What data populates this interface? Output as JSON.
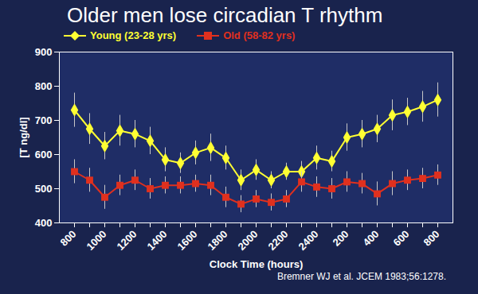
{
  "chart_data": {
    "type": "line",
    "title": "Older men lose circadian T rhythm",
    "x_label": "Clock Time (hours)",
    "y_label": "[T ng/dl]",
    "caption": "Bremner WJ et al. JCEM 1983;56:1278.",
    "categories": [
      "800",
      null,
      "1000",
      null,
      "1200",
      null,
      "1400",
      null,
      "1600",
      null,
      "1800",
      null,
      "2000",
      null,
      "2200",
      null,
      "2400",
      null,
      "200",
      null,
      "400",
      null,
      "600",
      null,
      "800"
    ],
    "series": [
      {
        "name": "Young (23-28 yrs)",
        "color": "#ffff33",
        "marker": "diamond",
        "values": [
          730,
          675,
          625,
          670,
          660,
          640,
          585,
          575,
          605,
          620,
          590,
          525,
          555,
          525,
          550,
          550,
          590,
          580,
          650,
          660,
          675,
          715,
          725,
          740,
          760
        ],
        "errors": [
          50,
          45,
          40,
          45,
          40,
          40,
          35,
          30,
          35,
          40,
          35,
          30,
          30,
          25,
          25,
          30,
          35,
          30,
          40,
          40,
          40,
          45,
          40,
          45,
          50
        ]
      },
      {
        "name": "Old (58-82 yrs)",
        "color": "#e0301e",
        "marker": "square",
        "values": [
          550,
          525,
          475,
          510,
          525,
          500,
          510,
          510,
          515,
          510,
          475,
          455,
          470,
          460,
          470,
          520,
          505,
          500,
          520,
          515,
          485,
          515,
          525,
          530,
          540
        ],
        "errors": [
          35,
          35,
          35,
          30,
          30,
          30,
          25,
          25,
          25,
          30,
          30,
          25,
          25,
          25,
          25,
          30,
          30,
          30,
          30,
          30,
          35,
          35,
          30,
          30,
          30
        ]
      }
    ],
    "ylim": [
      400,
      900
    ],
    "yticks": [
      400,
      500,
      600,
      700,
      800,
      900
    ],
    "grid": false,
    "legend": "top"
  }
}
